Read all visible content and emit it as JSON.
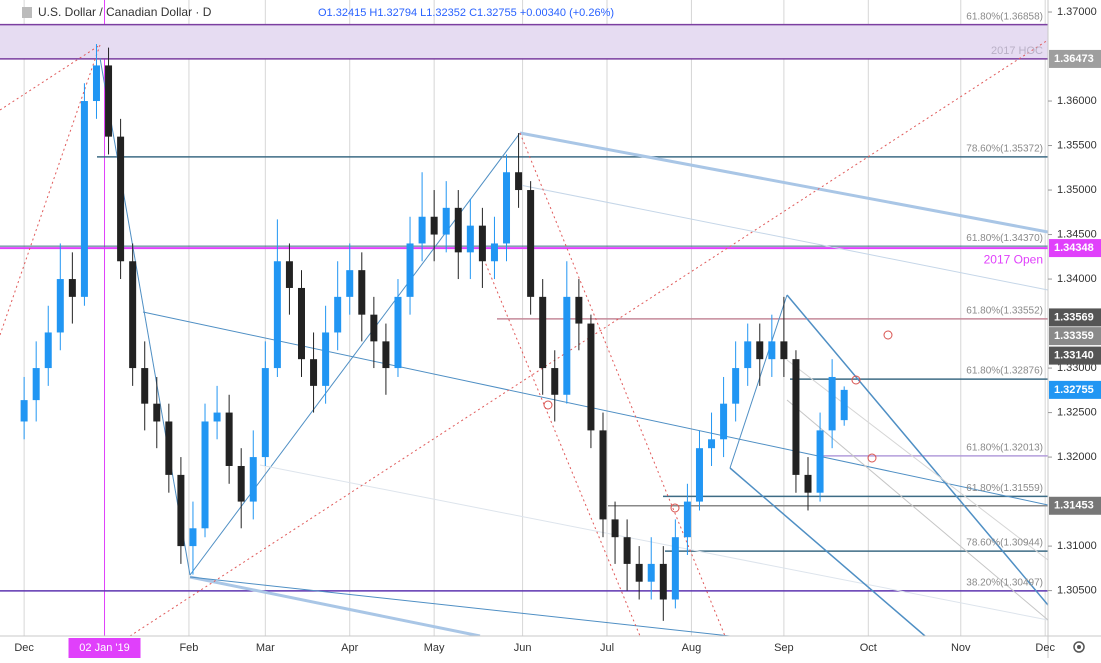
{
  "chart_data": {
    "type": "candlestick",
    "title": "U.S. Dollar / Canadian Dollar · D",
    "subtitle": "O1.32415 H1.32794 L1.32352 C1.32755 +0.00340 (+0.26%)",
    "up_color": "#2196f3",
    "down_color": "#222222",
    "xlim": [
      -6,
      254.7
    ],
    "ylim": [
      1.2999,
      1.37135
    ],
    "xticks": [
      {
        "value": 0,
        "label": "Dec"
      },
      {
        "value": 41,
        "label": "Feb"
      },
      {
        "value": 60,
        "label": "Mar"
      },
      {
        "value": 81,
        "label": "Apr"
      },
      {
        "value": 102,
        "label": "May"
      },
      {
        "value": 124,
        "label": "Jun"
      },
      {
        "value": 145,
        "label": "Jul"
      },
      {
        "value": 166,
        "label": "Aug"
      },
      {
        "value": 189,
        "label": "Sep"
      },
      {
        "value": 210,
        "label": "Oct"
      },
      {
        "value": 233,
        "label": "Nov"
      },
      {
        "value": 254,
        "label": "Dec"
      }
    ],
    "x_marker": {
      "value": 20,
      "label": "02 Jan '19",
      "color": "#e040fb"
    },
    "yticks": [
      {
        "value": 1.37,
        "label": "1.37000"
      },
      {
        "value": 1.36,
        "label": "1.36000"
      },
      {
        "value": 1.355,
        "label": "1.35500"
      },
      {
        "value": 1.35,
        "label": "1.35000"
      },
      {
        "value": 1.345,
        "label": "1.34500"
      },
      {
        "value": 1.34,
        "label": "1.34000"
      },
      {
        "value": 1.33,
        "label": "1.33000"
      },
      {
        "value": 1.325,
        "label": "1.32500"
      },
      {
        "value": 1.32,
        "label": "1.32000"
      },
      {
        "value": 1.31,
        "label": "1.31000"
      },
      {
        "value": 1.305,
        "label": "1.30500"
      }
    ],
    "grid": true,
    "zone": {
      "top": 1.36858,
      "bottom": 1.36473,
      "label": "2017 HOC",
      "color": "#e6dcf2"
    },
    "levels": [
      {
        "value": 1.36858,
        "label": "61.80%(1.36858)",
        "color": "#7b3fa0"
      },
      {
        "value": 1.36473,
        "color": "#7b3fa0"
      },
      {
        "value": 1.35372,
        "label": "78.60%(1.35372)",
        "color": "#3d6b85"
      },
      {
        "value": 1.3437,
        "label": "61.80%(1.34370)",
        "color": "#3d6b85"
      },
      {
        "value": 1.34348,
        "label": "2017 Open",
        "color": "#e040fb"
      },
      {
        "value": 1.33552,
        "label": "61.80%(1.33552)",
        "color": "#c48a9a"
      },
      {
        "value": 1.32876,
        "label": "61.80%(1.32876)",
        "color": "#3d6b85"
      },
      {
        "value": 1.32013,
        "label": "61.80%(1.32013)",
        "color": "#b39ddb"
      },
      {
        "value": 1.31559,
        "label": "61.80%(1.31559)",
        "color": "#3d6b85"
      },
      {
        "value": 1.31453,
        "color": "#888888"
      },
      {
        "value": 1.30944,
        "label": "78.60%(1.30944)",
        "color": "#3d6b85"
      },
      {
        "value": 1.30497,
        "label": "38.20%(1.30497)",
        "color": "#5e35b1"
      }
    ],
    "price_badges": [
      {
        "value": 1.36473,
        "color": "#9e9e9e"
      },
      {
        "value": 1.34348,
        "color": "#e040fb"
      },
      {
        "value": 1.33569,
        "color": "#555555"
      },
      {
        "value": 1.33359,
        "color": "#8a8a8a"
      },
      {
        "value": 1.3314,
        "label": "1.33140",
        "color": "#555555"
      },
      {
        "value": 1.32755,
        "color": "#2196f3"
      },
      {
        "value": 1.31453,
        "color": "#777777"
      }
    ],
    "candles": {
      "x": [
        0,
        3,
        6,
        9,
        12,
        15,
        18,
        21,
        24,
        27,
        30,
        33,
        36,
        39,
        42,
        45,
        48,
        51,
        54,
        57,
        60,
        63,
        66,
        69,
        72,
        75,
        78,
        81,
        84,
        87,
        90,
        93,
        96,
        99,
        102,
        105,
        108,
        111,
        114,
        117,
        120,
        123,
        126,
        129,
        132,
        135,
        138,
        141,
        144,
        147,
        150,
        153,
        156,
        159,
        162,
        165,
        168,
        171,
        174,
        177,
        180,
        183,
        186,
        189,
        192,
        195,
        198,
        201,
        204
      ],
      "ohlc": [
        [
          1.324,
          1.329,
          1.322,
          1.3264
        ],
        [
          1.3264,
          1.333,
          1.324,
          1.33
        ],
        [
          1.33,
          1.337,
          1.328,
          1.334
        ],
        [
          1.334,
          1.344,
          1.332,
          1.34
        ],
        [
          1.34,
          1.343,
          1.335,
          1.338
        ],
        [
          1.338,
          1.362,
          1.337,
          1.36
        ],
        [
          1.36,
          1.3664,
          1.358,
          1.364
        ],
        [
          1.364,
          1.366,
          1.354,
          1.356
        ],
        [
          1.356,
          1.358,
          1.34,
          1.342
        ],
        [
          1.342,
          1.344,
          1.328,
          1.33
        ],
        [
          1.33,
          1.333,
          1.323,
          1.326
        ],
        [
          1.326,
          1.329,
          1.321,
          1.324
        ],
        [
          1.324,
          1.326,
          1.316,
          1.318
        ],
        [
          1.318,
          1.32,
          1.308,
          1.31
        ],
        [
          1.31,
          1.315,
          1.3068,
          1.312
        ],
        [
          1.312,
          1.326,
          1.311,
          1.324
        ],
        [
          1.324,
          1.328,
          1.322,
          1.325
        ],
        [
          1.325,
          1.327,
          1.317,
          1.319
        ],
        [
          1.319,
          1.321,
          1.312,
          1.315
        ],
        [
          1.315,
          1.323,
          1.313,
          1.32
        ],
        [
          1.32,
          1.333,
          1.319,
          1.33
        ],
        [
          1.33,
          1.3467,
          1.329,
          1.342
        ],
        [
          1.342,
          1.344,
          1.336,
          1.339
        ],
        [
          1.339,
          1.341,
          1.329,
          1.331
        ],
        [
          1.331,
          1.334,
          1.325,
          1.328
        ],
        [
          1.328,
          1.337,
          1.326,
          1.334
        ],
        [
          1.334,
          1.342,
          1.332,
          1.338
        ],
        [
          1.338,
          1.344,
          1.336,
          1.341
        ],
        [
          1.341,
          1.343,
          1.333,
          1.336
        ],
        [
          1.336,
          1.338,
          1.33,
          1.333
        ],
        [
          1.333,
          1.335,
          1.327,
          1.33
        ],
        [
          1.33,
          1.34,
          1.329,
          1.338
        ],
        [
          1.338,
          1.347,
          1.336,
          1.344
        ],
        [
          1.344,
          1.352,
          1.342,
          1.347
        ],
        [
          1.347,
          1.35,
          1.342,
          1.345
        ],
        [
          1.345,
          1.351,
          1.343,
          1.348
        ],
        [
          1.348,
          1.35,
          1.34,
          1.343
        ],
        [
          1.343,
          1.349,
          1.34,
          1.346
        ],
        [
          1.346,
          1.348,
          1.339,
          1.342
        ],
        [
          1.342,
          1.347,
          1.34,
          1.344
        ],
        [
          1.344,
          1.354,
          1.342,
          1.352
        ],
        [
          1.352,
          1.3564,
          1.348,
          1.35
        ],
        [
          1.35,
          1.351,
          1.336,
          1.338
        ],
        [
          1.338,
          1.34,
          1.327,
          1.33
        ],
        [
          1.33,
          1.332,
          1.324,
          1.327
        ],
        [
          1.327,
          1.342,
          1.326,
          1.338
        ],
        [
          1.338,
          1.34,
          1.332,
          1.335
        ],
        [
          1.335,
          1.336,
          1.321,
          1.323
        ],
        [
          1.323,
          1.325,
          1.311,
          1.313
        ],
        [
          1.313,
          1.315,
          1.308,
          1.311
        ],
        [
          1.311,
          1.313,
          1.305,
          1.308
        ],
        [
          1.308,
          1.31,
          1.304,
          1.306
        ],
        [
          1.306,
          1.311,
          1.304,
          1.308
        ],
        [
          1.308,
          1.31,
          1.3016,
          1.304
        ],
        [
          1.304,
          1.313,
          1.303,
          1.311
        ],
        [
          1.311,
          1.317,
          1.309,
          1.315
        ],
        [
          1.315,
          1.323,
          1.314,
          1.321
        ],
        [
          1.321,
          1.325,
          1.319,
          1.322
        ],
        [
          1.322,
          1.329,
          1.32,
          1.326
        ],
        [
          1.326,
          1.333,
          1.324,
          1.33
        ],
        [
          1.33,
          1.335,
          1.328,
          1.333
        ],
        [
          1.333,
          1.335,
          1.328,
          1.331
        ],
        [
          1.331,
          1.336,
          1.329,
          1.333
        ],
        [
          1.333,
          1.338,
          1.329,
          1.331
        ],
        [
          1.331,
          1.332,
          1.316,
          1.318
        ],
        [
          1.318,
          1.32,
          1.314,
          1.316
        ],
        [
          1.316,
          1.325,
          1.315,
          1.323
        ],
        [
          1.323,
          1.331,
          1.321,
          1.329
        ],
        [
          1.32415,
          1.32794,
          1.32352,
          1.32755
        ]
      ]
    }
  }
}
